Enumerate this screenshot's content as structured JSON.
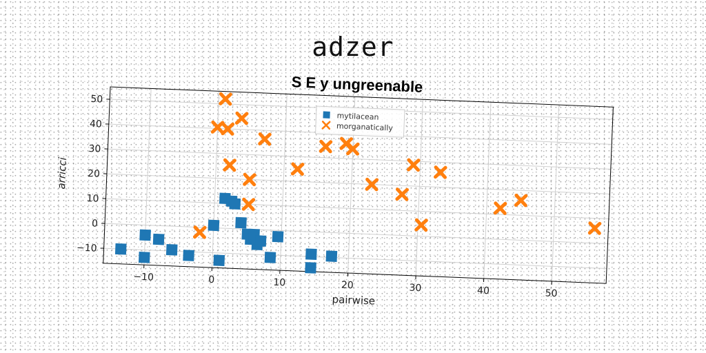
{
  "page_title": "adzer",
  "chart_data": {
    "type": "scatter",
    "title": "S E y ungreenable",
    "xlabel": "pairwise",
    "ylabel": "arricci",
    "xlim": [
      -16,
      58
    ],
    "ylim": [
      -16,
      55
    ],
    "xticks": [
      -10,
      0,
      10,
      20,
      30,
      40,
      50
    ],
    "yticks": [
      -10,
      0,
      10,
      20,
      30,
      40,
      50
    ],
    "xtick_labels": [
      "−10",
      "0",
      "10",
      "20",
      "30",
      "40",
      "50"
    ],
    "ytick_labels": [
      "−10",
      "0",
      "10",
      "20",
      "30",
      "40",
      "50"
    ],
    "grid": true,
    "legend_position": "top-center",
    "series": [
      {
        "name": "mytilacean",
        "marker": "square",
        "color": "#1f77b4",
        "points": [
          [
            -13.5,
            -10
          ],
          [
            -10,
            -4
          ],
          [
            -10,
            -13
          ],
          [
            -8,
            -5.5
          ],
          [
            -6,
            -9.5
          ],
          [
            -3.5,
            -11.5
          ],
          [
            0,
            1
          ],
          [
            1,
            -13
          ],
          [
            1.5,
            12
          ],
          [
            2.5,
            11
          ],
          [
            3,
            10
          ],
          [
            4,
            2.5
          ],
          [
            5,
            -2
          ],
          [
            5.5,
            -4
          ],
          [
            6,
            -2
          ],
          [
            6.5,
            -6
          ],
          [
            7,
            -4.5
          ],
          [
            8.5,
            -11
          ],
          [
            9.5,
            -2.5
          ],
          [
            14.5,
            -9
          ],
          [
            14.5,
            -14.5
          ],
          [
            17.5,
            -9.5
          ]
        ]
      },
      {
        "name": "morganatically",
        "marker": "x",
        "color": "#ff7f0e",
        "points": [
          [
            -2,
            -2
          ],
          [
            0,
            40.5
          ],
          [
            1,
            52
          ],
          [
            1.5,
            40
          ],
          [
            2,
            25.5
          ],
          [
            3.5,
            44.5
          ],
          [
            5,
            10
          ],
          [
            5,
            20
          ],
          [
            7,
            36.5
          ],
          [
            12,
            25
          ],
          [
            16,
            34.5
          ],
          [
            19,
            36
          ],
          [
            20,
            34
          ],
          [
            23,
            20
          ],
          [
            27.5,
            16.5
          ],
          [
            29,
            28.5
          ],
          [
            30.5,
            4.5
          ],
          [
            33,
            26
          ],
          [
            42,
            12.5
          ],
          [
            45,
            16
          ],
          [
            56,
            6
          ]
        ]
      }
    ]
  }
}
